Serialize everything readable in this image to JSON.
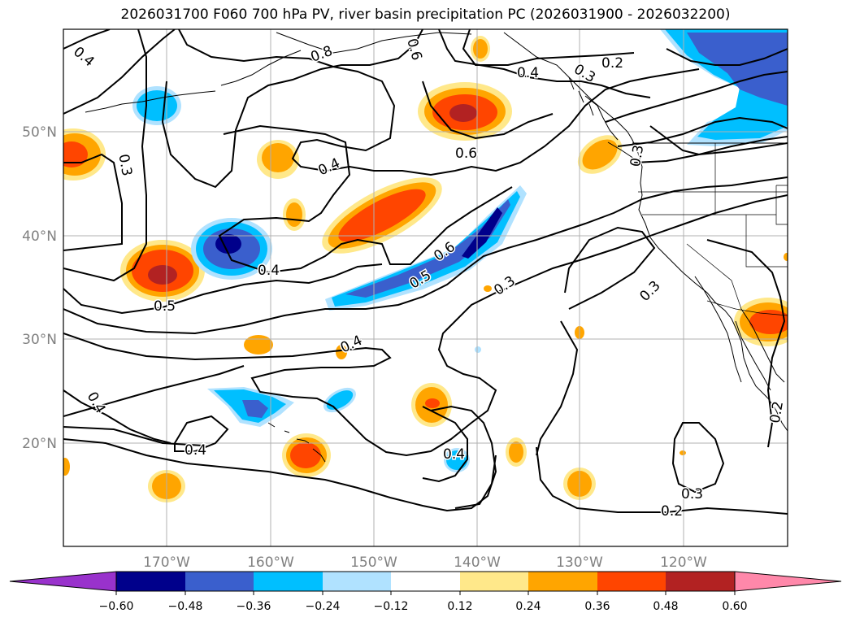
{
  "title": "2026031700 F060 700 hPa PV, river basin precipitation PC (2026031900 - 2026032200)",
  "latitude_labels": [
    "50°N",
    "40°N",
    "30°N",
    "20°N"
  ],
  "longitude_labels": [
    "170°W",
    "160°W",
    "150°W",
    "140°W",
    "130°W",
    "120°W"
  ],
  "colorbar": {
    "ticks": [
      "−0.60",
      "−0.48",
      "−0.36",
      "−0.24",
      "−0.12",
      "0.12",
      "0.24",
      "0.36",
      "0.48",
      "0.60"
    ],
    "colors": [
      "#9932cc",
      "#00008b",
      "#3a5fcd",
      "#00bfff",
      "#b0e2ff",
      "#ffffff",
      "#ffe88a",
      "#ffa500",
      "#ff4500",
      "#b22222",
      "#ff88aa"
    ],
    "extend": "both"
  },
  "contour_labels": [
    "0.4",
    "0.6",
    "0.4",
    "0.3",
    "0.2",
    "0.8",
    "0.3",
    "0.4",
    "0.6",
    "0.4",
    "0.6",
    "0.5",
    "0.5",
    "0.3",
    "0.4",
    "0.3",
    "0.3",
    "0.4",
    "0.4",
    "0.4",
    "0.3",
    "0.2",
    "0.2"
  ],
  "colors": {
    "contour": "#000000",
    "coast": "#000000",
    "grid": "#b0b0b0",
    "axis_labels": "#808080"
  }
}
